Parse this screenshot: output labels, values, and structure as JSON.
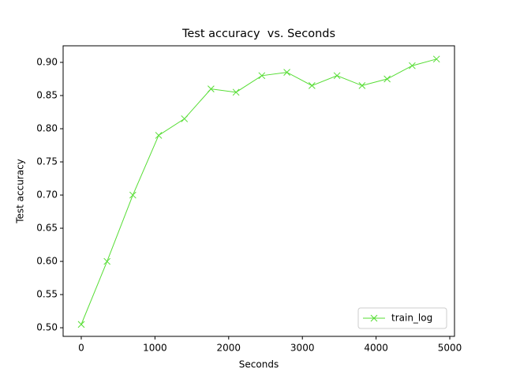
{
  "chart_data": {
    "type": "line",
    "title": "Test accuracy  vs. Seconds",
    "xlabel": "Seconds",
    "ylabel": "Test accuracy",
    "series": [
      {
        "name": "train_log",
        "color": "#55dd33",
        "x": [
          0,
          350,
          700,
          1050,
          1400,
          1760,
          2100,
          2450,
          2790,
          3130,
          3470,
          3810,
          4150,
          4490,
          4820
        ],
        "values": [
          0.505,
          0.6,
          0.7,
          0.79,
          0.815,
          0.86,
          0.855,
          0.88,
          0.885,
          0.865,
          0.88,
          0.865,
          0.875,
          0.895,
          0.905
        ]
      }
    ],
    "xlim": [
      -246,
      5064
    ],
    "ylim": [
      0.487,
      0.925
    ],
    "xticks": [
      0,
      1000,
      2000,
      3000,
      4000,
      5000
    ],
    "yticks": [
      {
        "value": 0.5,
        "label": "0.50"
      },
      0.55,
      {
        "value": 0.6,
        "label": "0.60"
      },
      0.65,
      {
        "value": 0.7,
        "label": "0.70"
      },
      0.75,
      {
        "value": 0.8,
        "label": "0.80"
      },
      0.85,
      {
        "value": 0.9,
        "label": "0.90"
      }
    ],
    "legend": "lower right"
  }
}
